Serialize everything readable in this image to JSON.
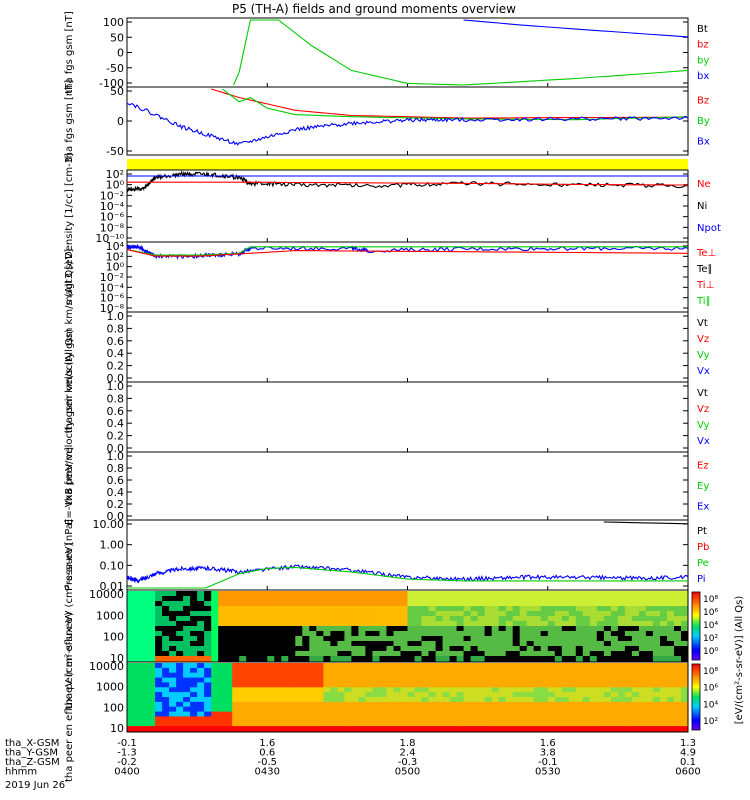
{
  "title": "P5 (TH-A) fields and ground moments overview",
  "colors": {
    "bg": "#ffffff",
    "axis": "#000000",
    "red": "#ff0000",
    "green": "#00cc00",
    "blue": "#0000ff",
    "yellow": "#ffff00"
  },
  "time_axis": {
    "rows": [
      {
        "label": "tha_X-GSM",
        "values": [
          "-0.1",
          "1.6",
          "1.8",
          "1.6",
          "1.3"
        ]
      },
      {
        "label": "tha_Y-GSM",
        "values": [
          "-1.3",
          "0.6",
          "2.4",
          "3.8",
          "4.9"
        ]
      },
      {
        "label": "tha_Z-GSM",
        "values": [
          "-0.2",
          "-0.5",
          "-0.3",
          "-0.1",
          "0.1"
        ]
      },
      {
        "label": "hhmm",
        "values": [
          "0400",
          "0430",
          "0500",
          "0530",
          "0600"
        ]
      }
    ],
    "date": "2019 Jun 26"
  },
  "chart_data": [
    {
      "type": "line",
      "ylabel": "tha fgs gsm [nT]",
      "yticks": [
        "100",
        "50",
        "0",
        "-50",
        "-100"
      ],
      "ylim": [
        -100,
        100
      ],
      "legend": [
        {
          "text": "Bt",
          "color": "#000000"
        },
        {
          "text": "bz",
          "color": "#ff0000"
        },
        {
          "text": "by",
          "color": "#00cc00"
        },
        {
          "text": "bx",
          "color": "#0000ff"
        }
      ],
      "series": [
        {
          "color": "#00cc00",
          "x": [
            0.19,
            0.2,
            0.22,
            0.27,
            0.33,
            0.4,
            0.5,
            0.6,
            0.7,
            0.8,
            0.9,
            1.0
          ],
          "y": [
            -100,
            -60,
            100,
            100,
            20,
            -55,
            -95,
            -100,
            -90,
            -80,
            -68,
            -55
          ]
        },
        {
          "color": "#0000ff",
          "x": [
            0.6,
            0.7,
            0.8,
            0.9,
            1.0
          ],
          "y": [
            100,
            85,
            72,
            60,
            48
          ]
        }
      ]
    },
    {
      "type": "line",
      "ylabel": "tha fgs gsm [nT]",
      "yticks": [
        "50",
        "0",
        "-50"
      ],
      "ylim": [
        -80,
        70
      ],
      "legend": [
        {
          "text": "Bz",
          "color": "#ff0000"
        },
        {
          "text": "By",
          "color": "#00cc00"
        },
        {
          "text": "Bx",
          "color": "#0000ff"
        }
      ],
      "series": [
        {
          "color": "#ff0000",
          "x": [
            0.15,
            0.2,
            0.3,
            0.4,
            0.6,
            0.8,
            1.0
          ],
          "y": [
            70,
            50,
            20,
            8,
            2,
            3,
            4
          ]
        },
        {
          "color": "#00cc00",
          "x": [
            0.17,
            0.2,
            0.22,
            0.25,
            0.3,
            0.4,
            0.6,
            0.8,
            1.0
          ],
          "y": [
            70,
            40,
            50,
            25,
            10,
            5,
            0,
            -2,
            5
          ]
        },
        {
          "color": "#0000ff",
          "x": [
            0.0,
            0.1,
            0.2,
            0.3,
            0.4,
            0.5,
            0.6,
            0.8,
            1.0
          ],
          "y": [
            40,
            -20,
            -60,
            -25,
            -10,
            -3,
            -2,
            0,
            2
          ],
          "noisy": true
        }
      ]
    },
    {
      "type": "line",
      "ylabel": "Density [1/cc] [cm-3]",
      "yticks": [
        "10²",
        "10⁰",
        "10⁻²",
        "10⁻⁴",
        "10⁻⁶",
        "10⁻⁸",
        "10⁻¹⁰"
      ],
      "ylog": [
        -10,
        2
      ],
      "legend": [
        {
          "text": "Ne",
          "color": "#ff0000"
        },
        {
          "text": "Ni",
          "color": "#000000"
        },
        {
          "text": "Npot",
          "color": "#0000ff"
        }
      ],
      "series": [
        {
          "color": "#000000",
          "x": [
            0,
            0.03,
            0.05,
            0.1,
            0.15,
            0.2,
            0.22,
            0.3,
            0.45,
            0.6,
            0.8,
            1.0
          ],
          "y": [
            -1,
            -1,
            1,
            1.7,
            1.5,
            1,
            0,
            -0.2,
            -0.4,
            0,
            -0.3,
            -0.4
          ],
          "noisy": true
        },
        {
          "color": "#ff0000",
          "x": [
            0,
            0.2,
            0.4,
            0.6,
            0.8,
            1.0
          ],
          "y": [
            0.2,
            0.2,
            0.1,
            0,
            -0.2,
            -0.3
          ]
        },
        {
          "color": "#0000ff",
          "x": [
            0,
            1.0
          ],
          "y": [
            1.3,
            1.3
          ]
        }
      ]
    },
    {
      "type": "line",
      "ylabel": "magt3 [eV]",
      "yticks": [
        "10⁴",
        "10²",
        "10⁰",
        "10⁻²",
        "10⁻⁴",
        "10⁻⁶",
        "10⁻⁸"
      ],
      "ylog": [
        -8,
        4
      ],
      "legend": [
        {
          "text": "Te⊥",
          "color": "#ff0000"
        },
        {
          "text": "Te∥",
          "color": "#000000"
        },
        {
          "text": "Ti⊥",
          "color": "#ff0000"
        },
        {
          "text": "Ti∥",
          "color": "#00cc00"
        }
      ],
      "series": [
        {
          "color": "#0000ff",
          "x": [
            0,
            0.02,
            0.05,
            0.13,
            0.15,
            0.2,
            0.22,
            0.4,
            0.43,
            0.6,
            0.8,
            1.0
          ],
          "y": [
            3.5,
            3.5,
            1.8,
            1.8,
            2,
            2.2,
            3.2,
            3.2,
            2.8,
            3.1,
            3.2,
            3.2
          ],
          "noisy": true
        },
        {
          "color": "#00cc00",
          "x": [
            0,
            0.05,
            0.13,
            0.2,
            0.22,
            0.4,
            0.6,
            1.0
          ],
          "y": [
            3,
            2,
            2,
            2.3,
            3.5,
            3.5,
            3.5,
            3.5
          ]
        },
        {
          "color": "#ff0000",
          "x": [
            0,
            0.05,
            0.13,
            0.2,
            0.3,
            0.6,
            1.0
          ],
          "y": [
            3,
            1.8,
            1.8,
            2.2,
            2.8,
            2.6,
            2.3
          ]
        }
      ]
    },
    {
      "type": "line",
      "ylabel": "tha peir velocity gsm km/s (All Qs)",
      "yticks": [
        "1.0",
        "0.8",
        "0.6",
        "0.4",
        "0.2",
        "0.0"
      ],
      "ylim": [
        0,
        1
      ],
      "legend": [
        {
          "text": "Vt",
          "color": "#000000"
        },
        {
          "text": "Vz",
          "color": "#ff0000"
        },
        {
          "text": "Vy",
          "color": "#00cc00"
        },
        {
          "text": "Vx",
          "color": "#0000ff"
        }
      ],
      "series": []
    },
    {
      "type": "line",
      "ylabel": "tha peer velocity gsm km/s (All Qs)",
      "yticks": [
        "1.0",
        "0.8",
        "0.6",
        "0.4",
        "0.2",
        "0.0"
      ],
      "ylim": [
        0,
        1
      ],
      "legend": [
        {
          "text": "Vt",
          "color": "#000000"
        },
        {
          "text": "Vz",
          "color": "#ff0000"
        },
        {
          "text": "Vy",
          "color": "#00cc00"
        },
        {
          "text": "Vx",
          "color": "#0000ff"
        }
      ],
      "series": []
    },
    {
      "type": "line",
      "ylabel": "E=-VxB [mV/m]",
      "yticks": [
        "1.0",
        "0.8",
        "0.6",
        "0.4",
        "0.2",
        "0.0"
      ],
      "ylim": [
        0,
        1
      ],
      "legend": [
        {
          "text": "Ez",
          "color": "#ff0000"
        },
        {
          "text": "Ey",
          "color": "#00cc00"
        },
        {
          "text": "Ex",
          "color": "#0000ff"
        }
      ],
      "series": []
    },
    {
      "type": "line",
      "ylabel": "Pressure [nPa]",
      "yticks": [
        "10.00",
        "1.00",
        "0.10",
        "0.01"
      ],
      "ylog": [
        -2.4,
        1.3
      ],
      "legend": [
        {
          "text": "Pt",
          "color": "#000000"
        },
        {
          "text": "Pb",
          "color": "#ff0000"
        },
        {
          "text": "Pe",
          "color": "#00cc00"
        },
        {
          "text": "Pi",
          "color": "#0000ff"
        }
      ],
      "series": [
        {
          "color": "#0000ff",
          "x": [
            0,
            0.02,
            0.05,
            0.1,
            0.15,
            0.2,
            0.3,
            0.4,
            0.5,
            0.6,
            0.7,
            0.8,
            0.9,
            1.0
          ],
          "y": [
            -1.8,
            -2,
            -1.6,
            -1.3,
            -1.3,
            -1.5,
            -1.2,
            -1.4,
            -1.8,
            -1.9,
            -1.8,
            -1.8,
            -1.85,
            -1.8
          ],
          "noisy": true
        },
        {
          "color": "#00cc00",
          "x": [
            0,
            0.05,
            0.14,
            0.2,
            0.25,
            0.3,
            0.4,
            0.5,
            0.6,
            0.7,
            0.8,
            1.0
          ],
          "y": [
            -2.4,
            -2.4,
            -2.4,
            -1.6,
            -1.3,
            -1.25,
            -1.5,
            -1.9,
            -2.0,
            -2.0,
            -2.0,
            -2.0
          ]
        },
        {
          "color": "#000000",
          "x": [
            0.85,
            1.0
          ],
          "y": [
            1.3,
            1.2
          ]
        }
      ]
    },
    {
      "type": "heatmap",
      "ylabel": "tha peir en eflux eV (cm²-s-sr-eV)",
      "yticks": [
        "10000",
        "1000",
        "100",
        "10"
      ],
      "colorbar": {
        "ticks": [
          "10⁸",
          "10⁶",
          "10⁴",
          "10²",
          "10⁰"
        ],
        "label": "[eV/(cm²-s-sr-eV)] (All Qs)"
      }
    },
    {
      "type": "heatmap",
      "ylabel": "tha peer en eflux eV (cm²-s-sr-eV)",
      "yticks": [
        "10000",
        "1000",
        "100",
        "10"
      ],
      "colorbar": {
        "ticks": [
          "10⁸",
          "10⁶",
          "10⁴",
          "10²"
        ],
        "label": "[eV/(cm²-s-sr-eV)] (All Qs)"
      }
    }
  ]
}
